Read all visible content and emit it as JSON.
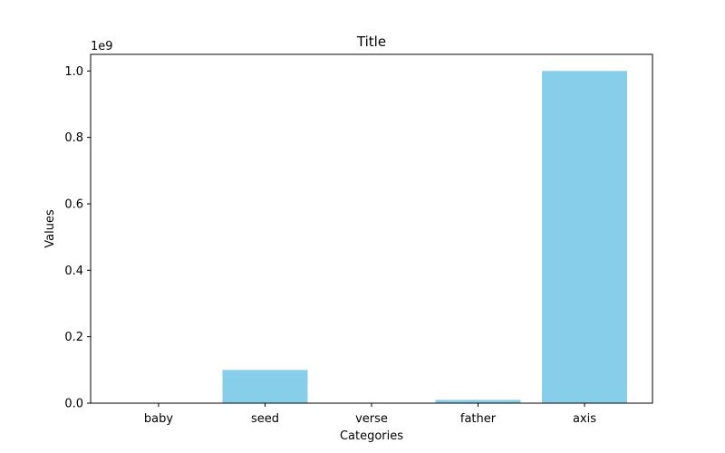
{
  "chart_data": {
    "type": "bar",
    "title": "Title",
    "xlabel": "Categories",
    "ylabel": "Values",
    "y_offset_label": "1e9",
    "categories": [
      "baby",
      "seed",
      "verse",
      "father",
      "axis"
    ],
    "values": [
      1000,
      100000000,
      100,
      10000000,
      1000000000
    ],
    "ylim": [
      0,
      1050000000
    ],
    "y_ticks": [
      0,
      200000000,
      400000000,
      600000000,
      800000000,
      1000000000
    ],
    "y_tick_labels": [
      "0.0",
      "0.2",
      "0.4",
      "0.6",
      "0.8",
      "1.0"
    ],
    "bar_color": "#87ceeb",
    "grid": false,
    "legend": "none"
  }
}
